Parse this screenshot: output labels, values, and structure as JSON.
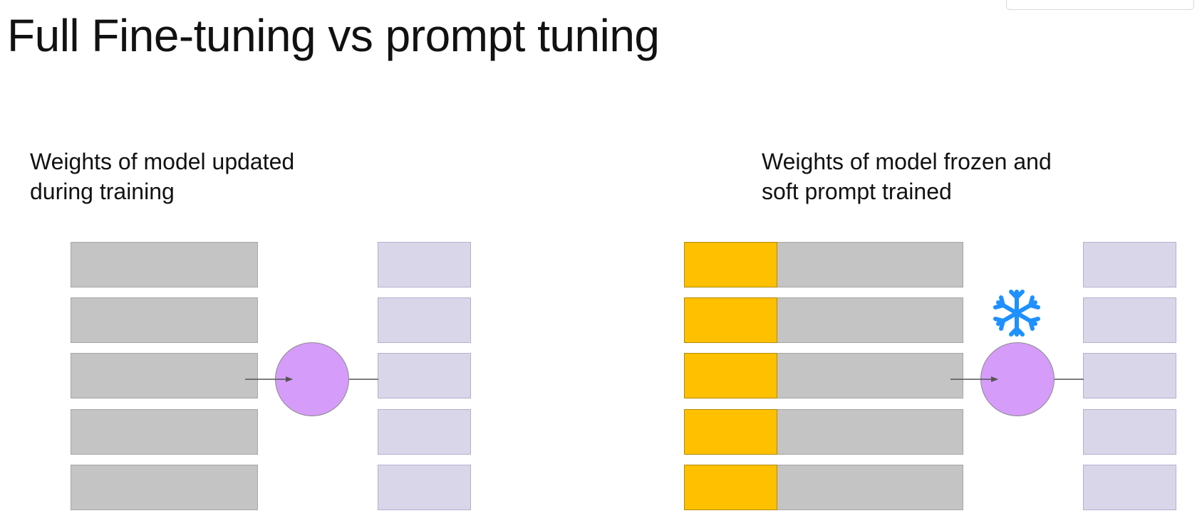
{
  "title": "Full Fine-tuning vs prompt tuning",
  "left_panel": {
    "heading_line1": "Weights of model updated",
    "heading_line2": "during training",
    "layer_count": 5,
    "output_count": 5
  },
  "right_panel": {
    "heading_line1": "Weights of model frozen and",
    "heading_line2": "soft prompt trained",
    "layer_count": 5,
    "output_count": 5,
    "frozen_indicator_icon": "snowflake-icon"
  },
  "colors": {
    "model_layer": "#c4c4c4",
    "soft_prompt": "#ffc000",
    "output": "#dad6ea",
    "node": "#d69cfa",
    "snowflake": "#1e90ff",
    "arrow": "#555555"
  }
}
